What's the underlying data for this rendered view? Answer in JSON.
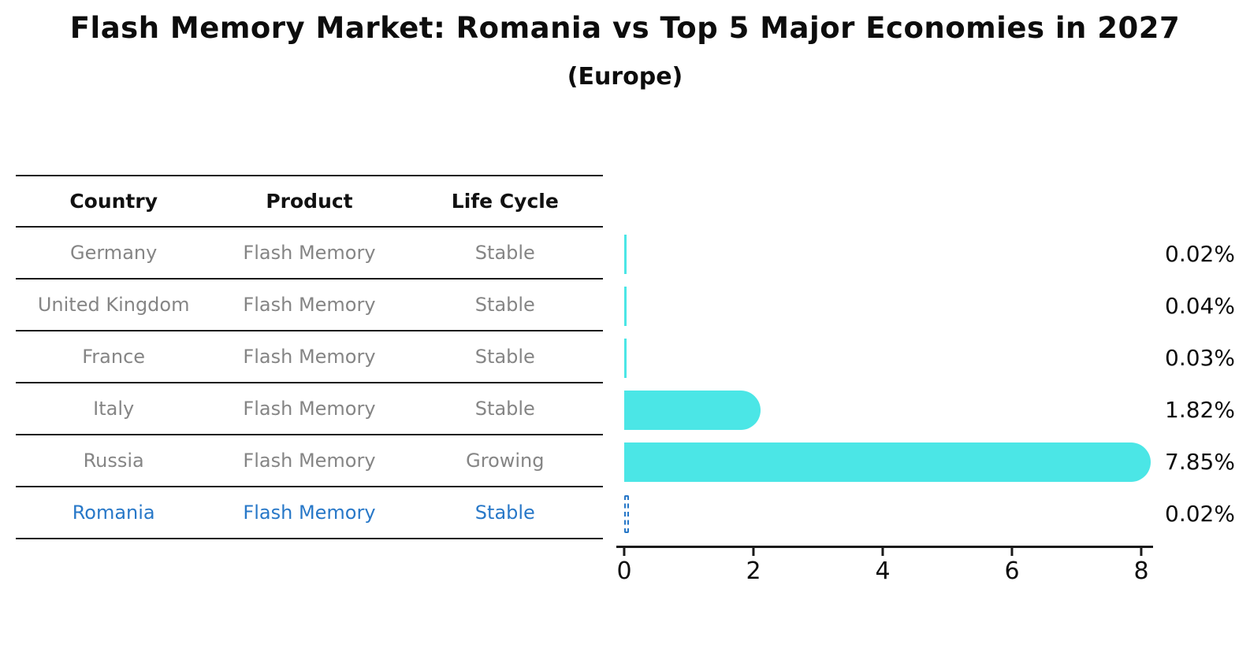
{
  "title": "Flash Memory Market: Romania vs Top 5 Major Economies in 2027",
  "subtitle": "(Europe)",
  "table": {
    "headers": [
      "Country",
      "Product",
      "Life Cycle"
    ],
    "rows": [
      {
        "country": "Germany",
        "product": "Flash Memory",
        "life_cycle": "Stable",
        "highlight": false
      },
      {
        "country": "United Kingdom",
        "product": "Flash Memory",
        "life_cycle": "Stable",
        "highlight": false
      },
      {
        "country": "France",
        "product": "Flash Memory",
        "life_cycle": "Stable",
        "highlight": false
      },
      {
        "country": "Italy",
        "product": "Flash Memory",
        "life_cycle": "Stable",
        "highlight": false
      },
      {
        "country": "Russia",
        "product": "Flash Memory",
        "life_cycle": "Growing",
        "highlight": false
      },
      {
        "country": "Romania",
        "product": "Flash Memory",
        "life_cycle": "Stable",
        "highlight": true
      }
    ]
  },
  "chart_data": {
    "type": "bar",
    "orientation": "horizontal",
    "title": "Flash Memory Market: Romania vs Top 5 Major Economies in 2027",
    "subtitle": "(Europe)",
    "categories": [
      "Germany",
      "United Kingdom",
      "France",
      "Italy",
      "Russia",
      "Romania"
    ],
    "values": [
      0.02,
      0.04,
      0.03,
      1.82,
      7.85,
      0.02
    ],
    "value_labels": [
      "0.02%",
      "0.04%",
      "0.03%",
      "1.82%",
      "7.85%",
      "0.02%"
    ],
    "xlabel": "",
    "ylabel": "",
    "xlim": [
      0,
      8
    ],
    "x_ticks": [
      0,
      2,
      4,
      6,
      8
    ],
    "grid": false,
    "legend": "none",
    "bar_color": "#4BE6E6",
    "highlight_index": 5,
    "highlight_color": "#2878C8",
    "highlight_style": "dashed-outline"
  },
  "colors": {
    "bar": "#4BE6E6",
    "highlight": "#2878C8",
    "muted_text": "#858585",
    "line": "#1a1a1a",
    "text": "#0d0d0d"
  }
}
